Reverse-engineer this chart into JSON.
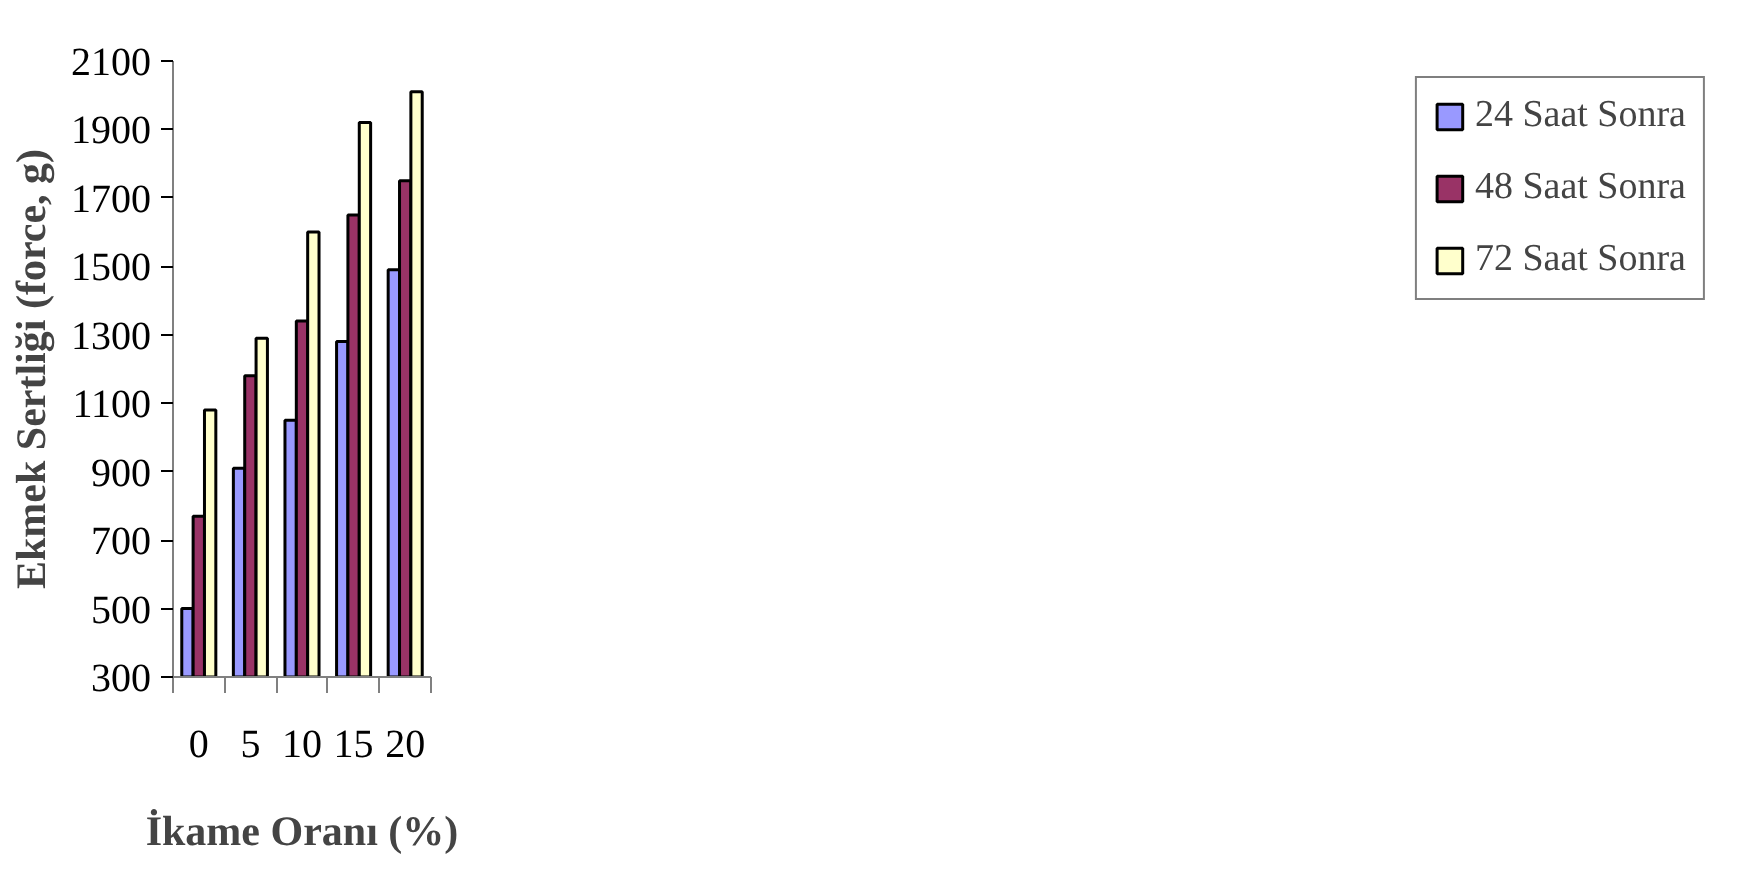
{
  "chart_data": {
    "type": "bar",
    "xlabel": "İkame Oranı (%)",
    "ylabel": "Ekmek Sertliği (force, g)",
    "categories": [
      "0",
      "5",
      "10",
      "15",
      "20"
    ],
    "series": [
      {
        "name": "24 Saat Sonra",
        "color": "#9999ff",
        "values": [
          500,
          910,
          1050,
          1280,
          1490
        ]
      },
      {
        "name": "48 Saat Sonra",
        "color": "#993366",
        "values": [
          770,
          1180,
          1340,
          1650,
          1750
        ]
      },
      {
        "name": "72 Saat Sonra",
        "color": "#ffffcc",
        "values": [
          1080,
          1290,
          1600,
          1920,
          2010
        ]
      }
    ],
    "ylim": [
      300,
      2100
    ],
    "yticks": [
      300,
      500,
      700,
      900,
      1100,
      1300,
      1500,
      1700,
      1900,
      2100
    ],
    "grid": false,
    "legend": "right"
  }
}
